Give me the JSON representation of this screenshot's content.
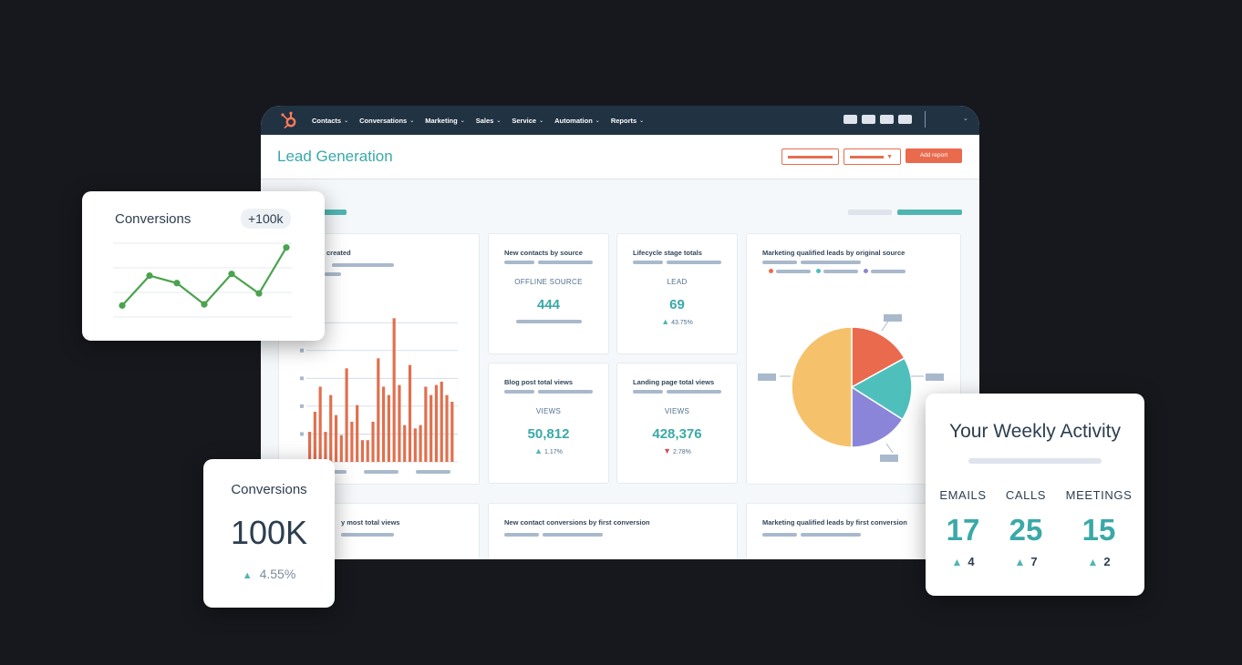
{
  "nav": {
    "items": [
      {
        "label": "Contacts"
      },
      {
        "label": "Conversations"
      },
      {
        "label": "Marketing"
      },
      {
        "label": "Sales"
      },
      {
        "label": "Service"
      },
      {
        "label": "Automation"
      },
      {
        "label": "Reports"
      }
    ],
    "chevron": "⌄"
  },
  "header": {
    "title": "Lead Generation",
    "add_report_label": "Add report"
  },
  "cards": {
    "created": {
      "title": "created"
    },
    "new_contacts": {
      "title": "New contacts by source",
      "label": "OFFLINE SOURCE",
      "value": "444"
    },
    "lifecycle": {
      "title": "Lifecycle stage totals",
      "label": "LEAD",
      "value": "69",
      "delta": "43.75%",
      "direction": "up"
    },
    "mql_source": {
      "title": "Marketing qualified leads by original source"
    },
    "blog": {
      "title": "Blog post total views",
      "label": "VIEWS",
      "value": "50,812",
      "delta": "1.17%",
      "direction": "up"
    },
    "landing": {
      "title": "Landing page total views",
      "label": "VIEWS",
      "value": "428,376",
      "delta": "2.78%",
      "direction": "down"
    },
    "most_views": {
      "title": "y most total views"
    },
    "new_conversions": {
      "title": "New contact conversions by first conversion"
    },
    "mql_conversion": {
      "title": "Marketing qualified leads by first conversion"
    }
  },
  "conversions_line": {
    "title": "Conversions",
    "badge": "+100k"
  },
  "conversions_kpi": {
    "title": "Conversions",
    "value": "100K",
    "delta": "4.55%"
  },
  "weekly": {
    "title": "Your Weekly Activity",
    "columns": [
      {
        "label": "EMAILS",
        "value": "17",
        "delta": "4"
      },
      {
        "label": "CALLS",
        "value": "25",
        "delta": "7"
      },
      {
        "label": "MEETINGS",
        "value": "15",
        "delta": "2"
      }
    ]
  },
  "colors": {
    "nav_bg": "#213343",
    "teal": "#3aa9a8",
    "orange": "#ea6a4d",
    "green_line": "#4aa34e",
    "pie_yellow": "#f5c26b",
    "pie_orange": "#ea6a4d",
    "pie_teal": "#4fbfbc",
    "pie_purple": "#8a85d8"
  },
  "chart_data": [
    {
      "type": "bar",
      "title": "created",
      "values": [
        18,
        30,
        45,
        18,
        40,
        28,
        16,
        56,
        24,
        34,
        13,
        13,
        24,
        62,
        45,
        40,
        86,
        46,
        22,
        58,
        20,
        22,
        45,
        40,
        46,
        48,
        40,
        36
      ]
    },
    {
      "type": "pie",
      "title": "Marketing qualified leads by original source",
      "slices": [
        {
          "value": 17,
          "color": "#ea6a4d"
        },
        {
          "value": 17,
          "color": "#4fbfbc"
        },
        {
          "value": 16,
          "color": "#8a85d8"
        },
        {
          "value": 50,
          "color": "#f5c26b"
        }
      ]
    },
    {
      "type": "line",
      "title": "Conversions",
      "values": [
        2,
        7.2,
        5.9,
        2.2,
        7.5,
        4.1,
        12.1
      ]
    }
  ]
}
